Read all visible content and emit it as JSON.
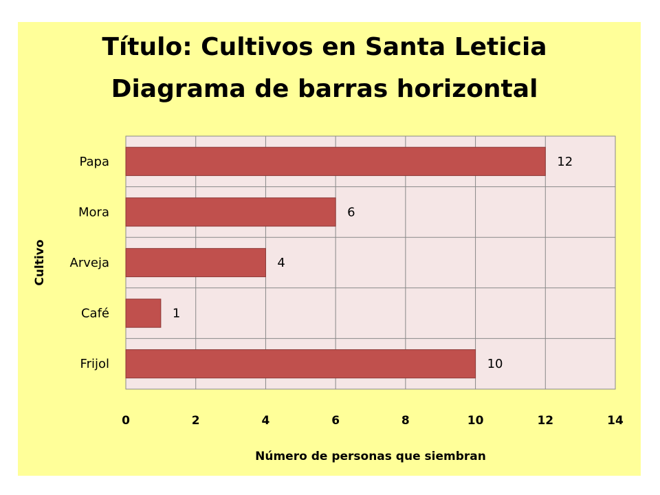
{
  "chart_data": {
    "type": "bar",
    "orientation": "horizontal",
    "title_lines": [
      "Título: Cultivos en Santa Leticia",
      "Diagrama de barras horizontal"
    ],
    "categories": [
      "Papa",
      "Mora",
      "Arveja",
      "Café",
      "Frijol"
    ],
    "values": [
      12,
      6,
      4,
      1,
      10
    ],
    "xlabel": "Número de personas que siembran",
    "ylabel": "Cultivo",
    "xlim": [
      0,
      14
    ],
    "xticks": [
      0,
      2,
      4,
      6,
      8,
      10,
      12,
      14
    ],
    "grid": true,
    "colors": {
      "background": "#ffff99",
      "plot_area": "#f5e6e6",
      "bar": "#c0504d",
      "bar_border": "#8c3836",
      "grid": "#888888"
    }
  }
}
